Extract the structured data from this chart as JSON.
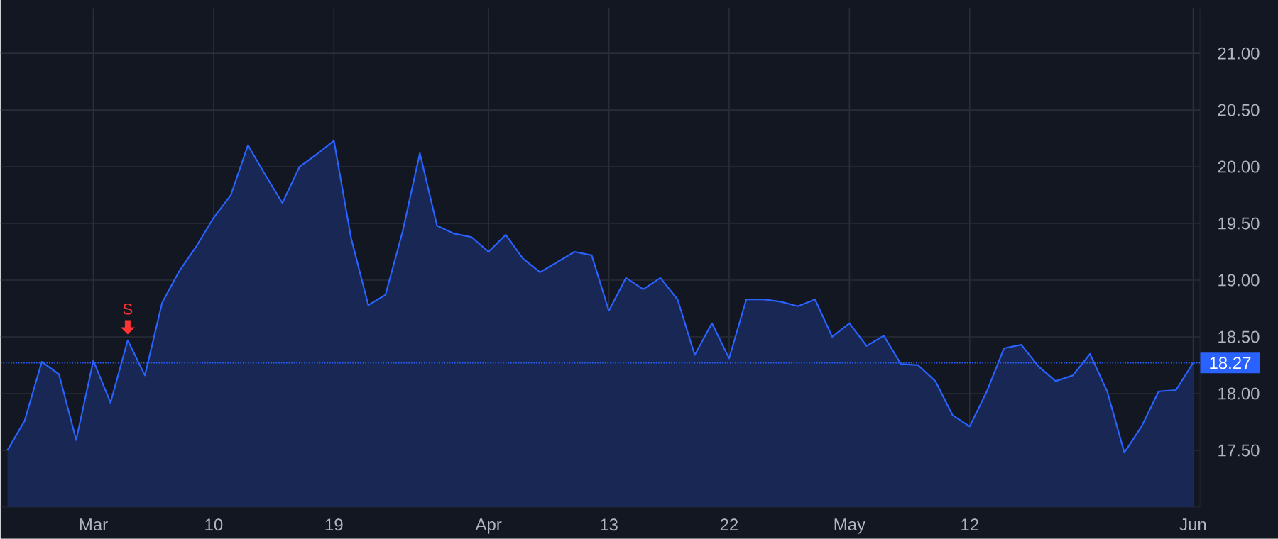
{
  "chart_data": {
    "type": "area",
    "color": "#2962ff",
    "categories": [
      null,
      null,
      null,
      null,
      null,
      "Mar",
      null,
      null,
      null,
      null,
      null,
      null,
      "10",
      null,
      null,
      null,
      null,
      null,
      null,
      "19",
      null,
      null,
      null,
      null,
      null,
      null,
      null,
      null,
      "Apr",
      null,
      null,
      null,
      null,
      null,
      null,
      "13",
      null,
      null,
      null,
      null,
      null,
      null,
      "22",
      null,
      null,
      null,
      null,
      null,
      null,
      "May",
      null,
      null,
      null,
      null,
      null,
      null,
      "12",
      null,
      null,
      null,
      null,
      null,
      null,
      null,
      null,
      null,
      null,
      null,
      null,
      "Jun"
    ],
    "values": [
      17.5,
      17.76,
      18.28,
      18.17,
      17.59,
      18.29,
      17.92,
      18.47,
      18.16,
      18.8,
      19.08,
      19.3,
      19.55,
      19.75,
      20.19,
      19.93,
      19.68,
      20.0,
      20.11,
      20.23,
      19.37,
      18.78,
      18.87,
      19.43,
      20.12,
      19.48,
      19.41,
      19.38,
      19.25,
      19.4,
      19.19,
      19.07,
      19.16,
      19.25,
      19.22,
      18.73,
      19.02,
      18.92,
      19.02,
      18.83,
      18.34,
      18.62,
      18.31,
      18.83,
      18.83,
      18.81,
      18.77,
      18.83,
      18.5,
      18.62,
      18.42,
      18.51,
      18.26,
      18.25,
      18.11,
      17.81,
      17.71,
      18.02,
      18.4,
      18.43,
      18.24,
      18.11,
      18.16,
      18.35,
      18.02,
      17.48,
      17.71,
      18.02,
      18.03,
      18.27
    ],
    "ylim": [
      17.0,
      21.4
    ],
    "yticks": [
      {
        "value": 17.5,
        "label": "17.50"
      },
      {
        "value": 18,
        "label": "18.00"
      },
      {
        "value": 18.5,
        "label": "18.50"
      },
      {
        "value": 19,
        "label": "19.00"
      },
      {
        "value": 19.5,
        "label": "19.50"
      },
      {
        "value": 20,
        "label": "20.00"
      },
      {
        "value": 20.5,
        "label": "20.50"
      },
      {
        "value": 21,
        "label": "21.00"
      }
    ],
    "grid": true,
    "ref_lines": [
      {
        "axis": "y",
        "value": 18.27,
        "label": "18.27",
        "color": "#2962ff",
        "line_style": "dotted"
      }
    ],
    "annotations": [
      {
        "text": "S",
        "y": 18.47
      }
    ]
  }
}
